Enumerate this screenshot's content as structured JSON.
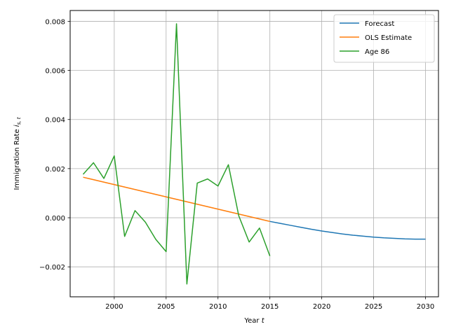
{
  "chart_data": {
    "type": "line",
    "xlabel": "Year",
    "xlabel_var": "t",
    "ylabel": "Immigration Rate",
    "ylabel_var": "i",
    "ylabel_sub": "s, t",
    "xlim": [
      1995.75,
      2031.25
    ],
    "ylim": [
      -0.00322,
      0.00844
    ],
    "x_ticks": [
      2000,
      2005,
      2010,
      2015,
      2020,
      2025,
      2030
    ],
    "y_ticks": [
      -0.002,
      0.0,
      0.002,
      0.004,
      0.006,
      0.008
    ],
    "y_tick_labels": [
      "−0.002",
      "0.000",
      "0.002",
      "0.004",
      "0.006",
      "0.008"
    ],
    "grid": true,
    "legend_position": "top-right",
    "series": [
      {
        "name": "Forecast",
        "color": "#1f77b4",
        "x": [
          2015,
          2016,
          2017,
          2018,
          2019,
          2020,
          2021,
          2022,
          2023,
          2024,
          2025,
          2026,
          2027,
          2028,
          2029,
          2030
        ],
        "y": [
          -0.00015,
          -0.00023,
          -0.00031,
          -0.00039,
          -0.00047,
          -0.00054,
          -0.0006,
          -0.00066,
          -0.00071,
          -0.00075,
          -0.00079,
          -0.00082,
          -0.00084,
          -0.00086,
          -0.00087,
          -0.00087
        ]
      },
      {
        "name": "OLS Estimate",
        "color": "#ff7f0e",
        "x": [
          1997,
          2015
        ],
        "y": [
          0.00165,
          -0.00015
        ]
      },
      {
        "name": "Age 86",
        "color": "#2ca02c",
        "x": [
          1997,
          1998,
          1999,
          2000,
          2001,
          2002,
          2003,
          2004,
          2005,
          2006,
          2007,
          2008,
          2009,
          2010,
          2011,
          2012,
          2013,
          2014,
          2015
        ],
        "y": [
          0.00177,
          0.00224,
          0.0016,
          0.00252,
          -0.00076,
          0.00029,
          -0.00018,
          -0.00088,
          -0.00138,
          0.0079,
          -0.0027,
          0.00141,
          0.00158,
          0.00129,
          0.00216,
          8e-05,
          -0.00099,
          -0.00042,
          -0.00156
        ]
      }
    ]
  }
}
